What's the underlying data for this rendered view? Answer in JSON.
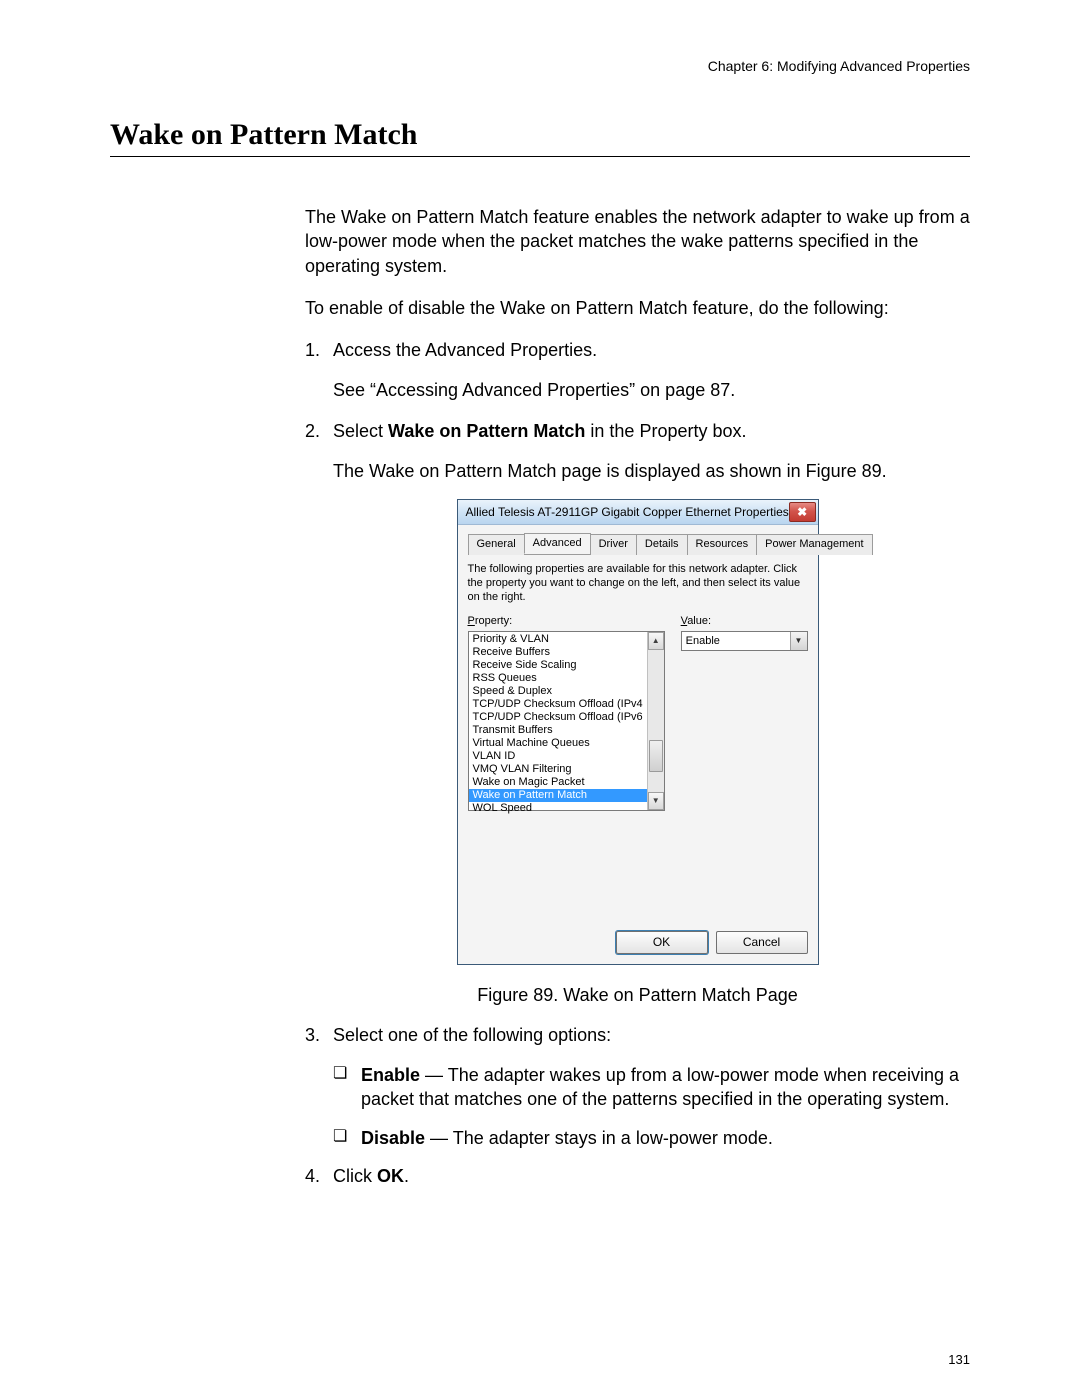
{
  "chapter_header": "Chapter 6: Modifying Advanced Properties",
  "section_title": "Wake on Pattern Match",
  "page_number": "131",
  "intro": "The Wake on Pattern Match feature enables the network adapter to wake up from a low-power mode when the packet matches the wake patterns specified in the operating system.",
  "lead_in": "To enable of disable the Wake on Pattern Match feature, do the following:",
  "step1_num": "1.",
  "step1_text": "Access the Advanced Properties.",
  "step1_ref": "See “Accessing Advanced Properties” on page 87.",
  "step2_num": "2.",
  "step2_pre": "Select ",
  "step2_bold": "Wake on Pattern Match",
  "step2_post": " in the Property box.",
  "step2_result": "The Wake on Pattern Match page is displayed as shown in Figure 89.",
  "figure_caption": "Figure 89. Wake on Pattern Match Page",
  "step3_num": "3.",
  "step3_text": "Select one of the following options:",
  "opt_enable_label": "Enable",
  "opt_enable_dash": " — ",
  "opt_enable_desc": "The adapter wakes up from a low-power mode when receiving a packet that matches one of the patterns specified in the operating system.",
  "opt_disable_label": "Disable",
  "opt_disable_dash": " — ",
  "opt_disable_desc": "The adapter stays in a low-power mode.",
  "step4_num": "4.",
  "step4_pre": "Click ",
  "step4_bold": "OK",
  "step4_post": ".",
  "bullet_glyph": "❏",
  "dialog": {
    "title": "Allied Telesis AT-2911GP Gigabit Copper Ethernet Properties",
    "close_glyph": "✖",
    "tabs": [
      "General",
      "Advanced",
      "Driver",
      "Details",
      "Resources",
      "Power Management"
    ],
    "active_tab": "Advanced",
    "instructions": "The following properties are available for this network adapter. Click the property you want to change on the left, and then select its value on the right.",
    "property_label_u": "P",
    "property_label_rest": "roperty:",
    "value_label_u": "V",
    "value_label_rest": "alue:",
    "properties": [
      "Priority & VLAN",
      "Receive Buffers",
      "Receive Side Scaling",
      "RSS Queues",
      "Speed & Duplex",
      "TCP/UDP Checksum Offload (IPv4",
      "TCP/UDP Checksum Offload (IPv6",
      "Transmit Buffers",
      "Virtual Machine Queues",
      "VLAN ID",
      "VMQ VLAN Filtering",
      "Wake on Magic Packet",
      "Wake on Pattern Match",
      "WOL Speed"
    ],
    "selected_property_index": 12,
    "value": "Enable",
    "scroll_up": "▲",
    "scroll_down": "▼",
    "dd_arrow": "▼",
    "ok": "OK",
    "cancel": "Cancel"
  },
  "colors": {
    "text": "#000000",
    "selection_bg": "#3399ff",
    "selection_text": "#ffffff",
    "titlebar_light": "#eaf3fb",
    "titlebar_dark": "#b9d5ef",
    "close_red": "#c33b32"
  }
}
